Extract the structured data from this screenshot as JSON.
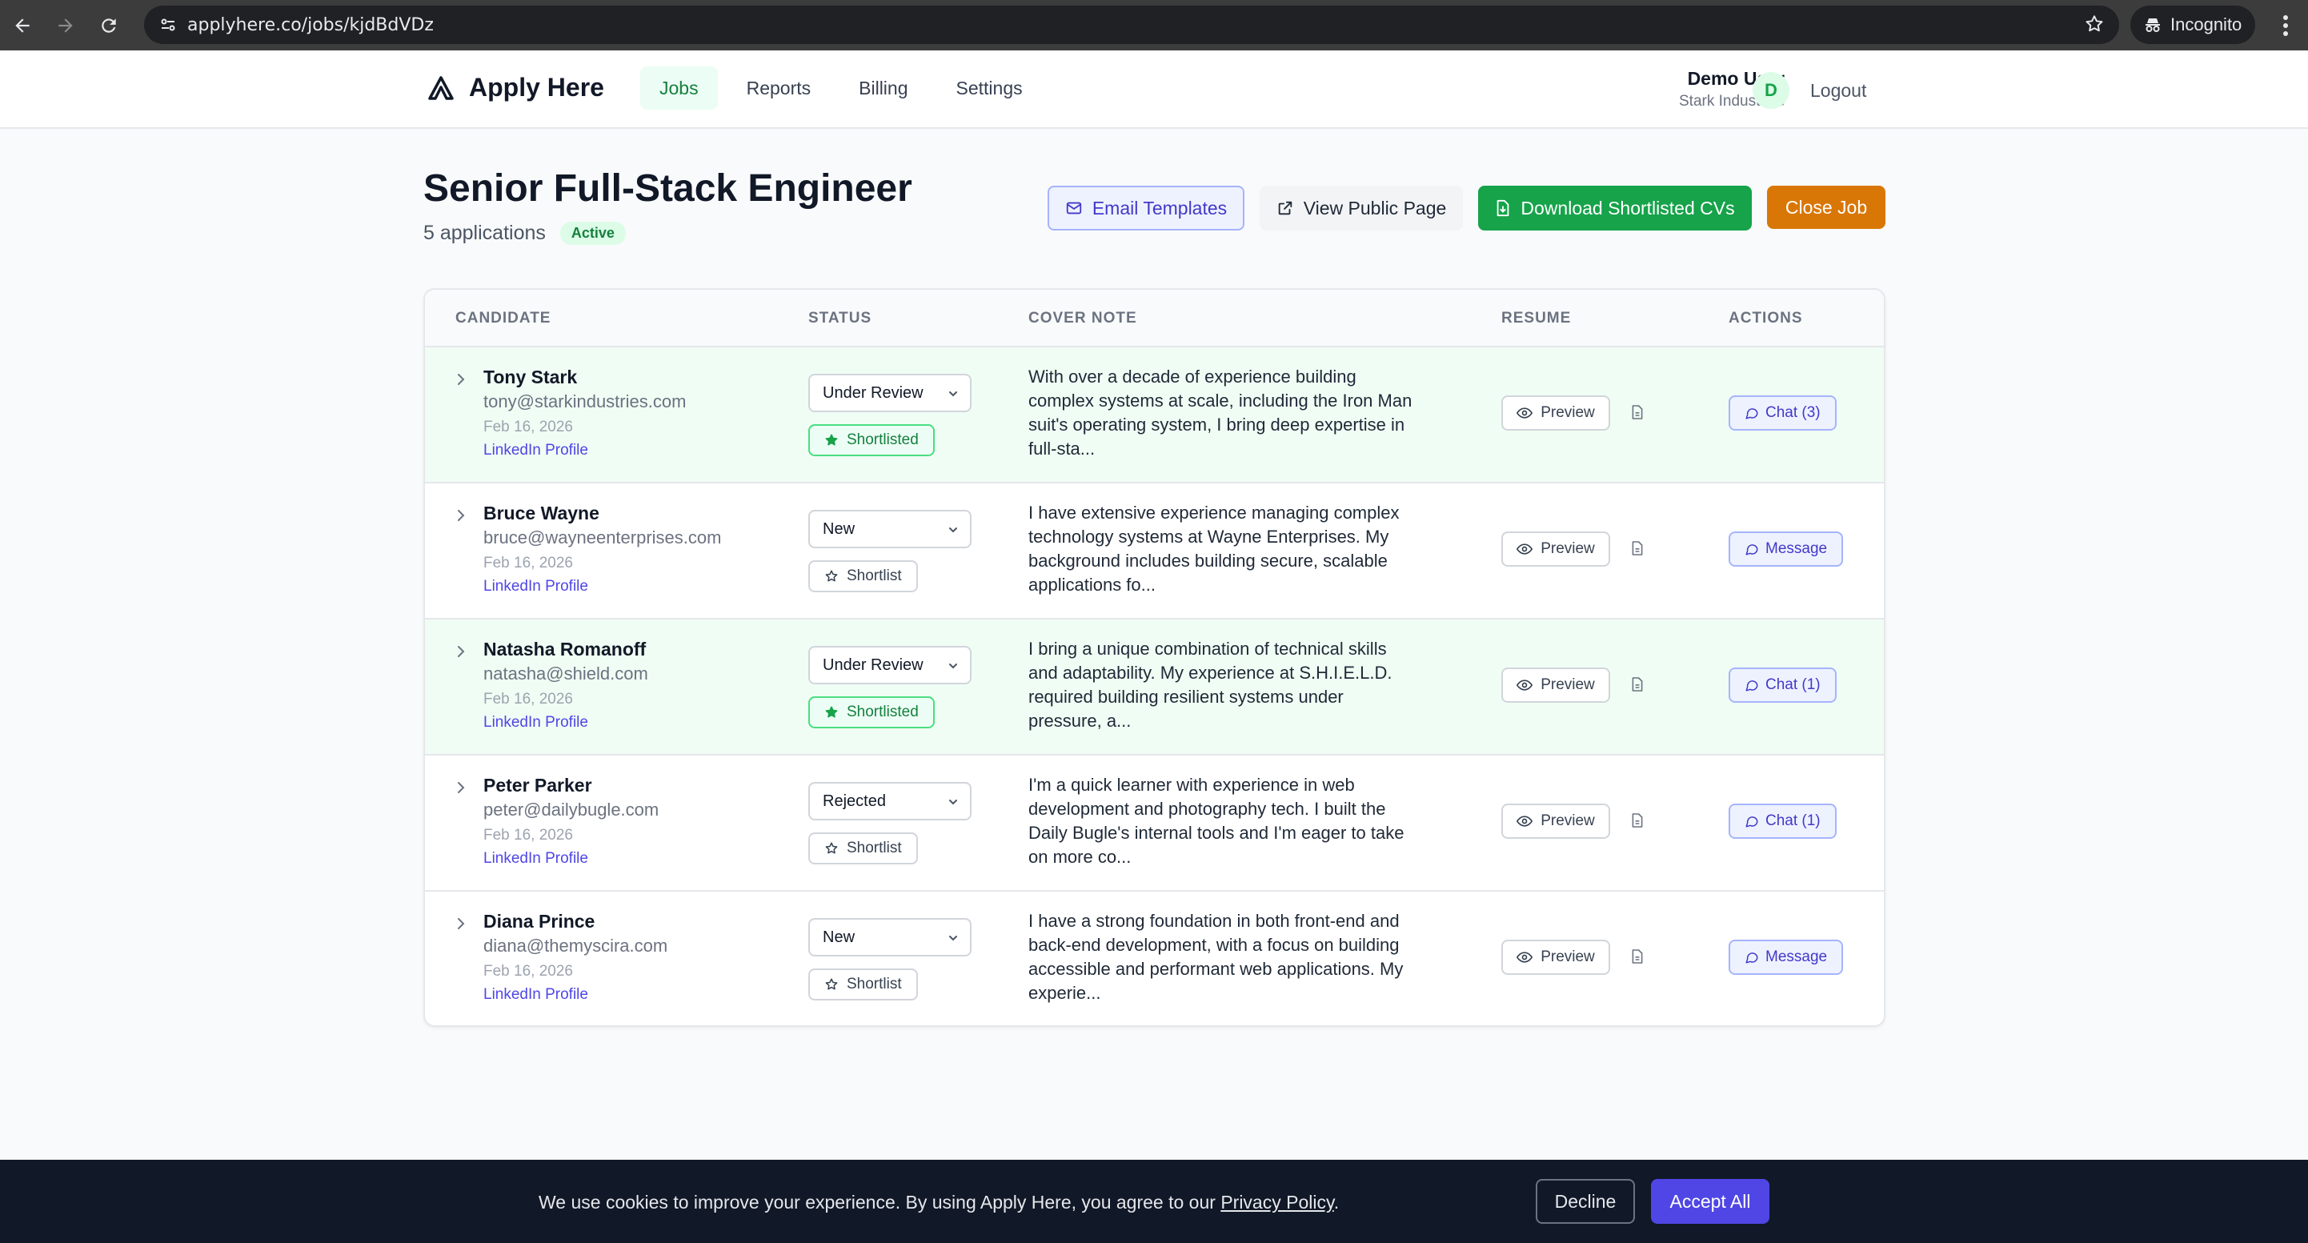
{
  "browser": {
    "url": "applyhere.co/jobs/kjdBdVDz",
    "mode_label": "Incognito"
  },
  "header": {
    "brand": "Apply Here",
    "nav": [
      "Jobs",
      "Reports",
      "Billing",
      "Settings"
    ],
    "active_nav": "Jobs",
    "user_name": "Demo User",
    "user_org": "Stark Industries",
    "avatar_initial": "D",
    "logout": "Logout"
  },
  "job": {
    "title": "Senior Full-Stack Engineer",
    "applications": "5 applications",
    "status": "Active"
  },
  "actions": {
    "email_templates": "Email Templates",
    "view_public": "View Public Page",
    "download": "Download Shortlisted CVs",
    "close_job": "Close Job"
  },
  "table": {
    "columns": [
      "CANDIDATE",
      "STATUS",
      "COVER NOTE",
      "RESUME",
      "ACTIONS"
    ],
    "preview_label": "Preview",
    "rows": [
      {
        "name": "Tony Stark",
        "email": "tony@starkindustries.com",
        "date": "Feb 16, 2026",
        "link": "LinkedIn Profile",
        "status": "Under Review",
        "shortlist": "Shortlisted",
        "cover": "With over a decade of experience building complex systems at scale, including the Iron Man suit's operating system, I bring deep expertise in full-sta...",
        "action": "Chat (3)"
      },
      {
        "name": "Bruce Wayne",
        "email": "bruce@wayneenterprises.com",
        "date": "Feb 16, 2026",
        "link": "LinkedIn Profile",
        "status": "New",
        "shortlist": "Shortlist",
        "cover": "I have extensive experience managing complex technology systems at Wayne Enterprises. My background includes building secure, scalable applications fo...",
        "action": "Message"
      },
      {
        "name": "Natasha Romanoff",
        "email": "natasha@shield.com",
        "date": "Feb 16, 2026",
        "link": "LinkedIn Profile",
        "status": "Under Review",
        "shortlist": "Shortlisted",
        "cover": "I bring a unique combination of technical skills and adaptability. My experience at S.H.I.E.L.D. required building resilient systems under pressure, a...",
        "action": "Chat (1)"
      },
      {
        "name": "Peter Parker",
        "email": "peter@dailybugle.com",
        "date": "Feb 16, 2026",
        "link": "LinkedIn Profile",
        "status": "Rejected",
        "shortlist": "Shortlist",
        "cover": "I'm a quick learner with experience in web development and photography tech. I built the Daily Bugle's internal tools and I'm eager to take on more co...",
        "action": "Chat (1)"
      },
      {
        "name": "Diana Prince",
        "email": "diana@themyscira.com",
        "date": "Feb 16, 2026",
        "link": "LinkedIn Profile",
        "status": "New",
        "shortlist": "Shortlist",
        "cover": "I have a strong foundation in both front-end and back-end development, with a focus on building accessible and performant web applications. My experie...",
        "action": "Message"
      }
    ]
  },
  "cookie": {
    "text": "We use cookies to improve your experience. By using Apply Here, you agree to our",
    "link": "Privacy Policy",
    "suffix": ".",
    "decline": "Decline",
    "accept": "Accept All"
  }
}
